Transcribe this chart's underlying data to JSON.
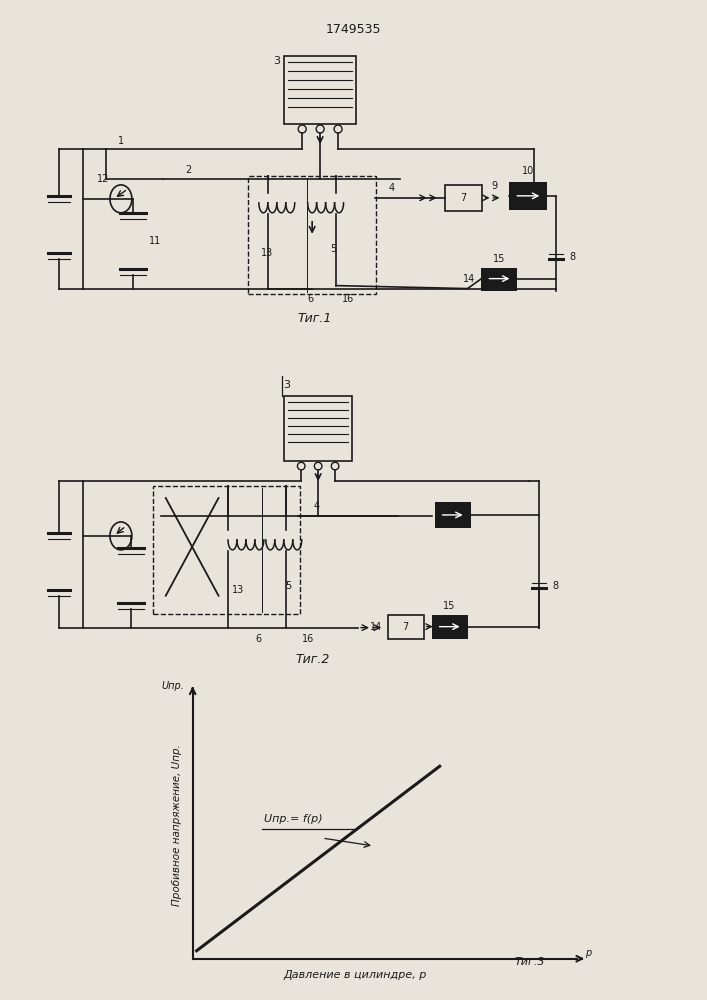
{
  "title": "1749535",
  "fig1_label": "Τиг.1",
  "fig2_label": "Τиг.2",
  "fig3_label": "Τиг.3",
  "graph_xlabel": "Давление в цилиндре, p",
  "graph_ylabel": "Пробивное напряжение, Uпр.",
  "graph_annotation": "Uпр.= f(p)",
  "bg_color": "#e8e4dc",
  "line_color": "#1a1a1a",
  "font_size_title": 9,
  "font_size_label": 7,
  "font_size_annot": 7
}
